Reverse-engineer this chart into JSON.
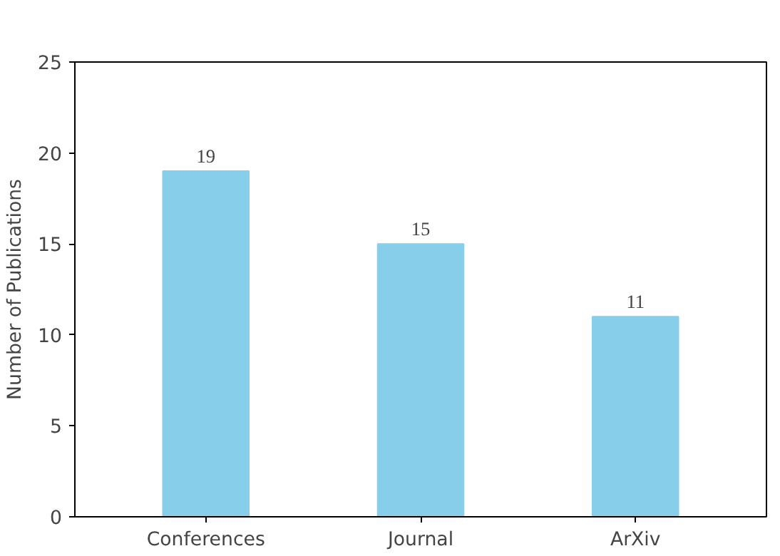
{
  "chart_data": {
    "type": "bar",
    "ylabel": "Number of Publications",
    "categories": [
      "Conferences",
      "Journal",
      "ArXiv"
    ],
    "values": [
      19,
      15,
      11
    ],
    "color": "#87ceeb",
    "ylim": [
      0,
      25
    ],
    "yticks": [
      0,
      5,
      10,
      15,
      20,
      25
    ],
    "grid": false,
    "data_labels": true
  }
}
